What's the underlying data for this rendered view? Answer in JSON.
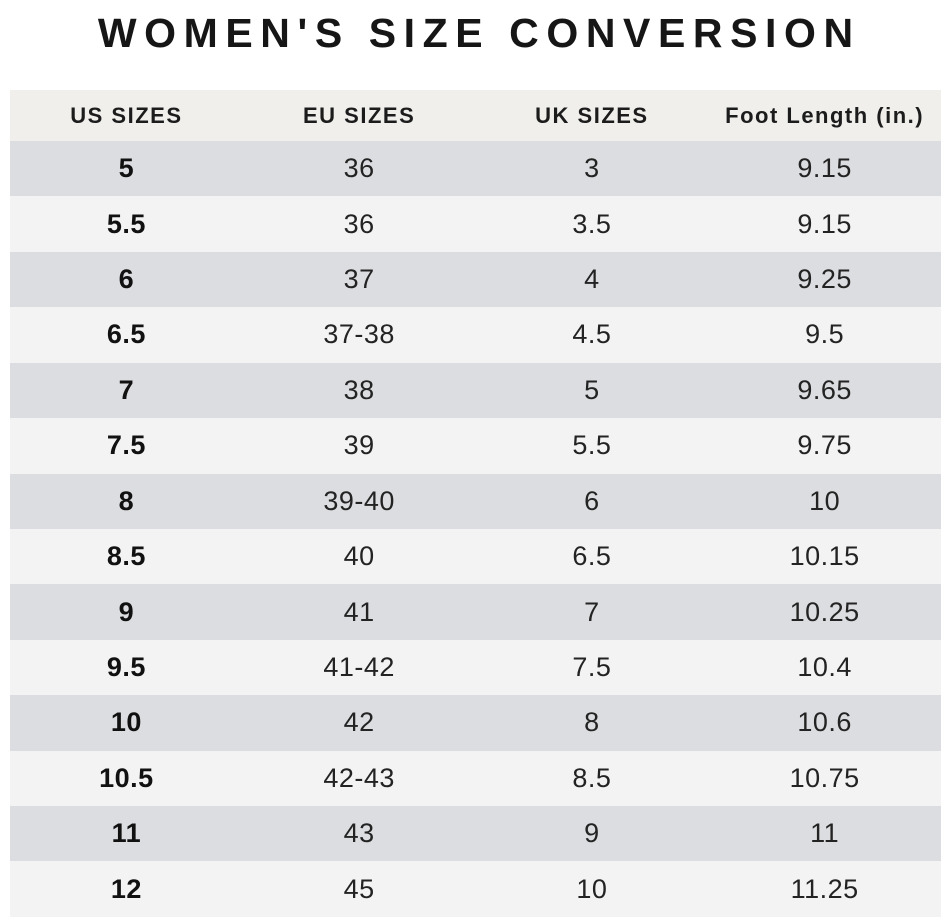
{
  "title": "WOMEN'S SIZE CONVERSION",
  "colors": {
    "page_background": "#ffffff",
    "header_row_background": "#f0efec",
    "row_dark_background": "#dcdde0",
    "row_light_background": "#f2f3f2",
    "title_text": "#161616",
    "cell_text": "#232323"
  },
  "chart_data": {
    "type": "table",
    "title": "WOMEN'S SIZE CONVERSION",
    "columns": [
      "US SIZES",
      "EU SIZES",
      "UK SIZES",
      "Foot Length (in.)"
    ],
    "rows": [
      [
        "5",
        "36",
        "3",
        "9.15"
      ],
      [
        "5.5",
        "36",
        "3.5",
        "9.15"
      ],
      [
        "6",
        "37",
        "4",
        "9.25"
      ],
      [
        "6.5",
        "37-38",
        "4.5",
        "9.5"
      ],
      [
        "7",
        "38",
        "5",
        "9.65"
      ],
      [
        "7.5",
        "39",
        "5.5",
        "9.75"
      ],
      [
        "8",
        "39-40",
        "6",
        "10"
      ],
      [
        "8.5",
        "40",
        "6.5",
        "10.15"
      ],
      [
        "9",
        "41",
        "7",
        "10.25"
      ],
      [
        "9.5",
        "41-42",
        "7.5",
        "10.4"
      ],
      [
        "10",
        "42",
        "8",
        "10.6"
      ],
      [
        "10.5",
        "42-43",
        "8.5",
        "10.75"
      ],
      [
        "11",
        "43",
        "9",
        "11"
      ],
      [
        "12",
        "45",
        "10",
        "11.25"
      ]
    ],
    "layout": {
      "row_shading": "alternating, first data row dark",
      "first_column_bold": true,
      "grid": false,
      "column_alignment": "center"
    }
  }
}
